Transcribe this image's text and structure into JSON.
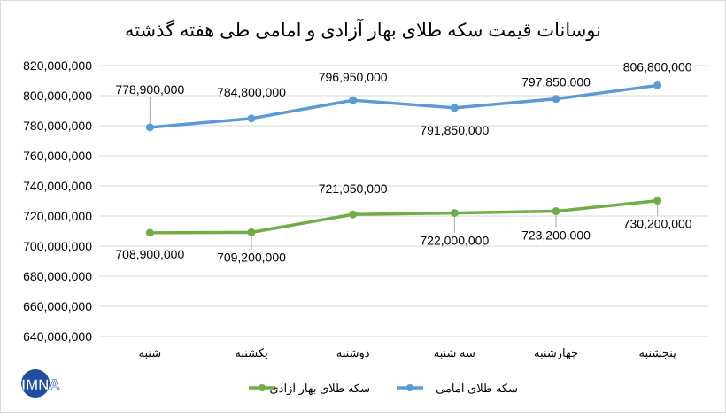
{
  "chart_data": {
    "type": "line",
    "title": "نوسانات قیمت سکه طلای بهار آزادی و امامی طی هفته گذشته",
    "categories": [
      "شنبه",
      "یکشنبه",
      "دوشنبه",
      "سه شنبه",
      "چهارشنبه",
      "پنجشنبه"
    ],
    "ylim": [
      640000000,
      820000000
    ],
    "ytick_step": 20000000,
    "yticks": [
      "640,000,000",
      "660,000,000",
      "680,000,000",
      "700,000,000",
      "720,000,000",
      "740,000,000",
      "760,000,000",
      "780,000,000",
      "800,000,000",
      "820,000,000"
    ],
    "grid": true,
    "legend_position": "bottom",
    "series": [
      {
        "name": "سکه طلای امامی",
        "color": "#5b9bd5",
        "values": [
          778900000,
          784800000,
          796950000,
          791850000,
          797850000,
          806800000
        ],
        "labels": [
          "778,900,000",
          "784,800,000",
          "796,950,000",
          "791,850,000",
          "797,850,000",
          "806,800,000"
        ]
      },
      {
        "name": "سکه طلای بهار آزادی",
        "color": "#70ad47",
        "values": [
          708900000,
          709200000,
          721050000,
          722000000,
          723200000,
          730200000
        ],
        "labels": [
          "708,900,000",
          "709,200,000",
          "721,050,000",
          "722,000,000",
          "723,200,000",
          "730,200,000"
        ]
      }
    ]
  },
  "logo": {
    "text": "IMNA"
  }
}
